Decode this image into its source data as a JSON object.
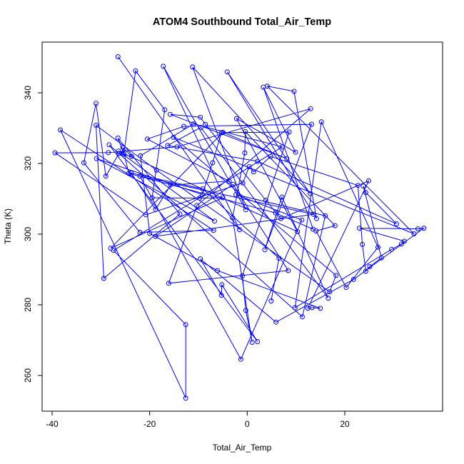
{
  "chart_data": {
    "type": "line",
    "title": "ATOM4 Southbound Total_Air_Temp",
    "xlabel": "Total_Air_Temp",
    "ylabel": "Theta (K)",
    "xlim": [
      -41,
      39
    ],
    "ylim": [
      250,
      354
    ],
    "xticks": [
      -40,
      -20,
      0,
      20
    ],
    "yticks": [
      260,
      280,
      300,
      320,
      340
    ],
    "grid": false,
    "legend": "none",
    "markers": "open-circle",
    "colors": {
      "series": "#0000ff",
      "axis": "#000000"
    },
    "series": [
      {
        "points": [
          [
            -26.5,
            350.2
          ],
          [
            -1.6,
            301.3
          ],
          [
            -17.2,
            347.5
          ],
          [
            -0.3,
            306.9
          ],
          [
            -11.2,
            347.3
          ],
          [
            12.9,
            311.5
          ],
          [
            -4.1,
            345.9
          ],
          [
            14.2,
            304.4
          ],
          [
            9.6,
            340.4
          ],
          [
            4.1,
            341.9
          ],
          [
            34.2,
            300.1
          ],
          [
            -15.1,
            327.4
          ],
          [
            18.2,
            288.3
          ],
          [
            16.9,
            283.7
          ],
          [
            -18.6,
            318.1
          ],
          [
            -31.0,
            330.8
          ],
          [
            -29.4,
            287.5
          ],
          [
            -13.8,
            305.7
          ],
          [
            -26.5,
            327.2
          ],
          [
            -25.3,
            322.7
          ],
          [
            -22.9,
            346.2
          ],
          [
            -16.9,
            335.2
          ],
          [
            -19.5,
            310.3
          ],
          [
            -9.8,
            310.2
          ],
          [
            -5.0,
            310.3
          ],
          [
            -28.0,
            296.0
          ],
          [
            -5.0,
            328.8
          ],
          [
            8.1,
            321.4
          ],
          [
            -15.8,
            333.9
          ],
          [
            -9.6,
            333.1
          ],
          [
            -8.6,
            331.1
          ],
          [
            3.8,
            309.6
          ],
          [
            6.9,
            304.4
          ],
          [
            24.9,
            315.1
          ],
          [
            12.4,
            279.0
          ],
          [
            13.3,
            279.2
          ],
          [
            15.0,
            279.0
          ],
          [
            -6.1,
            289.7
          ],
          [
            -20.0,
            300.2
          ],
          [
            -21.9,
            322.2
          ],
          [
            -11.0,
            331.2
          ],
          [
            7.2,
            324.7
          ],
          [
            -27.4,
            295.4
          ],
          [
            -12.6,
            274.4
          ],
          [
            -12.6,
            253.6
          ],
          [
            -38.3,
            329.5
          ],
          [
            -6.9,
            301.1
          ],
          [
            -22.0,
            300.5
          ],
          [
            -33.5,
            320.2
          ],
          [
            -31.0,
            337.0
          ],
          [
            -29.0,
            316.4
          ],
          [
            -26.3,
            322.8
          ],
          [
            -23.7,
            322.0
          ],
          [
            -25.5,
            324.5
          ],
          [
            -24.3,
            317.2
          ],
          [
            5.8,
            306.0
          ],
          [
            13.5,
            301.4
          ],
          [
            3.3,
            341.6
          ],
          [
            9.9,
            323.2
          ],
          [
            -2.2,
            332.7
          ],
          [
            10.3,
            300.7
          ],
          [
            -26.4,
            323.5
          ],
          [
            -6.7,
            303.7
          ],
          [
            -30.9,
            321.4
          ],
          [
            -9.2,
            311.2
          ],
          [
            -7.1,
            320.2
          ],
          [
            -5.3,
            328.7
          ],
          [
            8.6,
            328.9
          ],
          [
            -1.0,
            288.2
          ],
          [
            -0.3,
            278.4
          ],
          [
            1.0,
            269.4
          ],
          [
            -3.0,
            304.6
          ],
          [
            -0.5,
            323.0
          ],
          [
            -0.4,
            329.0
          ],
          [
            18.0,
            302.4
          ],
          [
            14.1,
            300.9
          ],
          [
            20.3,
            284.9
          ],
          [
            26.8,
            296.3
          ],
          [
            15.2,
            331.8
          ],
          [
            9.8,
            279.2
          ],
          [
            29.6,
            295.7
          ],
          [
            31.6,
            297.2
          ],
          [
            32.2,
            298.0
          ],
          [
            23.0,
            301.7
          ],
          [
            35.0,
            301.5
          ],
          [
            36.2,
            301.7
          ],
          [
            21.8,
            287.2
          ],
          [
            5.9,
            275.1
          ],
          [
            -9.6,
            293.0
          ],
          [
            -5.3,
            282.7
          ],
          [
            -5.2,
            285.7
          ],
          [
            2.1,
            269.6
          ],
          [
            -28.3,
            325.3
          ],
          [
            11.3,
            276.6
          ],
          [
            16.0,
            305.2
          ],
          [
            -2.3,
            311.2
          ],
          [
            11.2,
            304.0
          ],
          [
            -1.3,
            264.6
          ],
          [
            -22.0,
            316.4
          ],
          [
            13.6,
            305.6
          ],
          [
            -18.8,
            299.4
          ],
          [
            -2.9,
            314.1
          ],
          [
            8.4,
            289.7
          ],
          [
            -16.1,
            286.1
          ],
          [
            -10.3,
            308.1
          ],
          [
            13.0,
            335.5
          ],
          [
            -14.4,
            324.7
          ],
          [
            -28.5,
            323.1
          ],
          [
            -39.4,
            323.0
          ],
          [
            -20.8,
            305.5
          ],
          [
            -0.9,
            314.5
          ],
          [
            0.4,
            319.1
          ],
          [
            1.3,
            317.6
          ],
          [
            4.8,
            322.0
          ],
          [
            22.7,
            313.8
          ],
          [
            23.6,
            297.1
          ],
          [
            24.3,
            289.5
          ],
          [
            25.1,
            290.8
          ],
          [
            27.5,
            293.3
          ],
          [
            23.8,
            313.6
          ],
          [
            24.3,
            311.8
          ],
          [
            30.6,
            302.9
          ],
          [
            2.1,
            320.6
          ],
          [
            -16.3,
            325.1
          ],
          [
            -9.5,
            330.2
          ],
          [
            16.6,
            281.9
          ],
          [
            7.1,
            310.5
          ],
          [
            3.6,
            295.6
          ],
          [
            13.2,
            331.1
          ],
          [
            -13.0,
            330.5
          ],
          [
            -20.5,
            326.9
          ],
          [
            -3.7,
            315.0
          ],
          [
            -15.7,
            313.9
          ],
          [
            -18.8,
            307.0
          ],
          [
            -23.8,
            317.3
          ],
          [
            -9.1,
            312.8
          ],
          [
            6.5,
            293.2
          ],
          [
            4.9,
            281.1
          ]
        ]
      }
    ]
  }
}
